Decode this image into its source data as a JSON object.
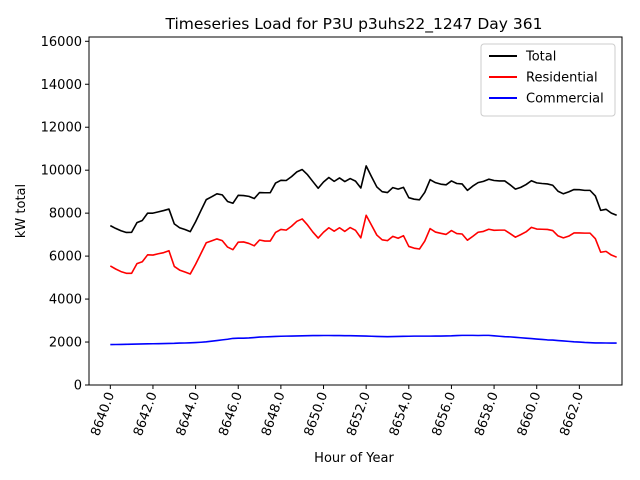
{
  "chart_data": {
    "type": "line",
    "title": "Timeseries Load for P3U p3uhs22_1247  Day 361",
    "xlabel": "Hour of Year",
    "ylabel": "kW total",
    "xlim": [
      8639,
      8664
    ],
    "ylim": [
      0,
      16200
    ],
    "xticks": [
      8640,
      8642,
      8644,
      8646,
      8648,
      8650,
      8652,
      8654,
      8656,
      8658,
      8660,
      8662
    ],
    "xtick_labels": [
      "8640.0",
      "8642.0",
      "8644.0",
      "8646.0",
      "8648.0",
      "8650.0",
      "8652.0",
      "8654.0",
      "8656.0",
      "8658.0",
      "8660.0",
      "8662.0"
    ],
    "yticks": [
      0,
      2000,
      4000,
      6000,
      8000,
      10000,
      12000,
      14000,
      16000
    ],
    "ytick_labels": [
      "0",
      "2000",
      "4000",
      "6000",
      "8000",
      "10000",
      "12000",
      "14000",
      "16000"
    ],
    "legend_position": "top-right",
    "x": [
      8640,
      8640.25,
      8640.5,
      8640.75,
      8641,
      8641.25,
      8641.5,
      8641.75,
      8642,
      8642.25,
      8642.5,
      8642.75,
      8643,
      8643.25,
      8643.5,
      8643.75,
      8644,
      8644.25,
      8644.5,
      8644.75,
      8645,
      8645.25,
      8645.5,
      8645.75,
      8646,
      8646.25,
      8646.5,
      8646.75,
      8647,
      8647.25,
      8647.5,
      8647.75,
      8648,
      8648.25,
      8648.5,
      8648.75,
      8649,
      8649.25,
      8649.5,
      8649.75,
      8650,
      8650.25,
      8650.5,
      8650.75,
      8651,
      8651.25,
      8651.5,
      8651.75,
      8652,
      8652.25,
      8652.5,
      8652.75,
      8653,
      8653.25,
      8653.5,
      8653.75,
      8654,
      8654.25,
      8654.5,
      8654.75,
      8655,
      8655.25,
      8655.5,
      8655.75,
      8656,
      8656.25,
      8656.5,
      8656.75,
      8657,
      8657.25,
      8657.5,
      8657.75,
      8658,
      8658.25,
      8658.5,
      8658.75,
      8659,
      8659.25,
      8659.5,
      8659.75,
      8660,
      8660.25,
      8660.5,
      8660.75,
      8661,
      8661.25,
      8661.5,
      8661.75,
      8662,
      8662.25,
      8662.5,
      8662.75,
      8663,
      8663.25,
      8663.5,
      8663.75
    ],
    "series": [
      {
        "name": "Total",
        "color": "#000000",
        "values": [
          7420,
          7290,
          7180,
          7100,
          7110,
          7560,
          7660,
          8000,
          8000,
          8060,
          8120,
          8190,
          7500,
          7320,
          7240,
          7140,
          7600,
          8120,
          8630,
          8760,
          8900,
          8850,
          8540,
          8460,
          8830,
          8820,
          8780,
          8680,
          8960,
          8950,
          8950,
          9400,
          9530,
          9520,
          9700,
          9920,
          10030,
          9790,
          9470,
          9160,
          9450,
          9660,
          9480,
          9640,
          9470,
          9610,
          9490,
          9170,
          10200,
          9700,
          9220,
          9000,
          8960,
          9190,
          9120,
          9200,
          8720,
          8650,
          8620,
          8970,
          9560,
          9420,
          9350,
          9320,
          9500,
          9380,
          9360,
          9060,
          9260,
          9420,
          9480,
          9580,
          9520,
          9500,
          9500,
          9320,
          9120,
          9200,
          9330,
          9510,
          9410,
          9380,
          9360,
          9300,
          9020,
          8900,
          8990,
          9100,
          9090,
          9060,
          9060,
          8800,
          8130,
          8180,
          8000,
          7900
        ]
      },
      {
        "name": "Residential",
        "color": "#ff0000",
        "values": [
          5540,
          5400,
          5280,
          5200,
          5200,
          5650,
          5740,
          6060,
          6050,
          6110,
          6160,
          6250,
          5520,
          5350,
          5260,
          5170,
          5620,
          6120,
          6620,
          6710,
          6800,
          6720,
          6420,
          6300,
          6650,
          6660,
          6590,
          6480,
          6750,
          6700,
          6700,
          7100,
          7240,
          7210,
          7390,
          7620,
          7730,
          7450,
          7120,
          6840,
          7110,
          7320,
          7160,
          7320,
          7150,
          7330,
          7200,
          6850,
          7900,
          7440,
          6980,
          6760,
          6720,
          6920,
          6830,
          6950,
          6450,
          6370,
          6330,
          6700,
          7280,
          7120,
          7060,
          7010,
          7190,
          7050,
          7030,
          6740,
          6920,
          7110,
          7150,
          7250,
          7200,
          7210,
          7210,
          7050,
          6880,
          7000,
          7130,
          7340,
          7260,
          7250,
          7240,
          7190,
          6940,
          6850,
          6930,
          7080,
          7080,
          7070,
          7070,
          6810,
          6180,
          6220,
          6050,
          5950
        ]
      },
      {
        "name": "Commercial",
        "color": "#0000ff",
        "values": [
          1880,
          1885,
          1890,
          1895,
          1900,
          1905,
          1910,
          1915,
          1920,
          1925,
          1930,
          1935,
          1940,
          1950,
          1955,
          1965,
          1975,
          1990,
          2010,
          2040,
          2070,
          2100,
          2130,
          2170,
          2180,
          2180,
          2190,
          2210,
          2230,
          2240,
          2250,
          2260,
          2270,
          2275,
          2280,
          2285,
          2290,
          2295,
          2300,
          2300,
          2305,
          2305,
          2300,
          2300,
          2295,
          2295,
          2290,
          2285,
          2280,
          2270,
          2260,
          2255,
          2250,
          2255,
          2260,
          2265,
          2270,
          2275,
          2275,
          2275,
          2275,
          2280,
          2280,
          2285,
          2290,
          2300,
          2310,
          2310,
          2310,
          2305,
          2310,
          2310,
          2290,
          2270,
          2250,
          2240,
          2220,
          2200,
          2180,
          2160,
          2140,
          2120,
          2100,
          2090,
          2070,
          2050,
          2030,
          2010,
          2000,
          1980,
          1970,
          1960,
          1960,
          1955,
          1950,
          1950
        ]
      }
    ]
  }
}
